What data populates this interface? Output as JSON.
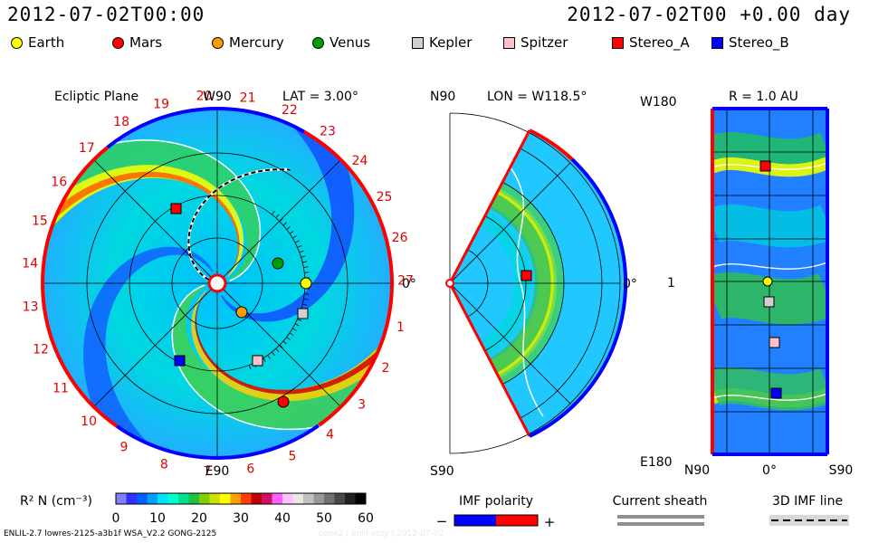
{
  "header": {
    "left": "2012-07-02T00:00",
    "right": "2012-07-02T00 +0.00 day"
  },
  "legend": [
    {
      "label": "Earth",
      "shape": "circle",
      "color": "#ffff00"
    },
    {
      "label": "Mars",
      "shape": "circle",
      "color": "#ff0000"
    },
    {
      "label": "Mercury",
      "shape": "circle",
      "color": "#ff9900"
    },
    {
      "label": "Venus",
      "shape": "circle",
      "color": "#00a000"
    },
    {
      "label": "Kepler",
      "shape": "square",
      "color": "#d0d0d0"
    },
    {
      "label": "Spitzer",
      "shape": "square",
      "color": "#ffc0c8"
    },
    {
      "label": "Stereo_A",
      "shape": "square",
      "color": "#ff0000"
    },
    {
      "label": "Stereo_B",
      "shape": "square",
      "color": "#0000ff"
    }
  ],
  "ecliptic": {
    "title": "Ecliptic Plane",
    "lat_label": "LAT = 3.00°",
    "top_label": "W90",
    "bottom_label": "E90",
    "right_label": "0°",
    "sector_numbers": [
      "1",
      "2",
      "3",
      "4",
      "5",
      "6",
      "7",
      "8",
      "9",
      "10",
      "11",
      "12",
      "13",
      "14",
      "15",
      "16",
      "17",
      "18",
      "19",
      "20",
      "21",
      "22",
      "23",
      "24",
      "25",
      "26",
      "27"
    ]
  },
  "meridional": {
    "lon_label": "LON = W118.5°",
    "top_label": "N90",
    "bottom_label": "S90",
    "right_label": "0°"
  },
  "radial": {
    "r_label": "R = 1.0 AU",
    "top_left_label": "W180",
    "mid_left_label": "1",
    "bottom_left_label": "E180",
    "x_labels": [
      "N90",
      "0°",
      "S90"
    ]
  },
  "colorbar": {
    "label": "R² N (cm⁻³)",
    "ticks": [
      "0",
      "10",
      "20",
      "30",
      "40",
      "50",
      "60"
    ],
    "colors": [
      "#8080ff",
      "#3030ff",
      "#0060ff",
      "#00a0ff",
      "#00e0ff",
      "#00ffd0",
      "#00e090",
      "#20c040",
      "#80d000",
      "#d0e000",
      "#ffff00",
      "#ffa000",
      "#ff4000",
      "#c00000",
      "#d01060",
      "#ff60ff",
      "#ffc0ff",
      "#e8e8e8",
      "#c0c0c0",
      "#989898",
      "#707070",
      "#484848",
      "#202020",
      "#000000"
    ]
  },
  "imf": {
    "label": "IMF polarity",
    "minus": "−",
    "plus": "+",
    "neg_color": "#0000ff",
    "pos_color": "#ff0000"
  },
  "sheath": {
    "label": "Current sheath"
  },
  "imf3d": {
    "label": "3D IMF line"
  },
  "footer": "ENLIL-2.7 lowres-2125-a3b1f WSA_V2.2 GONG-2125",
  "footer2": "cone2 | enlil-stdy | 2012-07-02"
}
